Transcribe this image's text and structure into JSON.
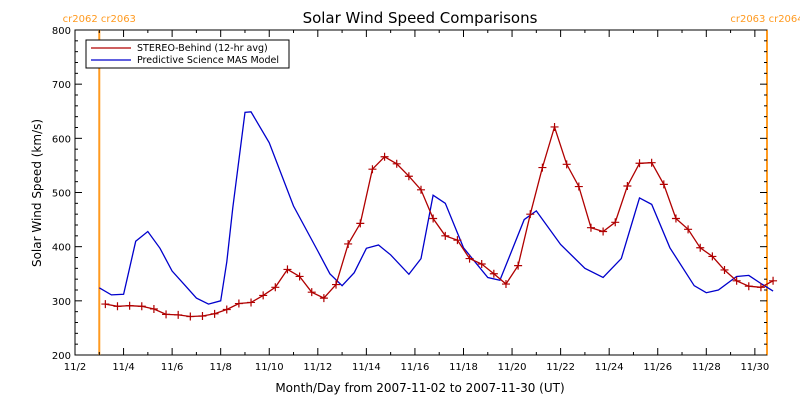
{
  "chart_data": {
    "type": "line",
    "title": "Solar Wind Speed Comparisons",
    "xlabel": "Month/Day from 2007-11-02 to 2007-11-30 (UT)",
    "ylabel": "Solar Wind Speed (km/s)",
    "ylim": [
      200,
      800
    ],
    "xlim": [
      "2007-11-02",
      "2007-11-30"
    ],
    "y_ticks": [
      "200",
      "300",
      "400",
      "500",
      "600",
      "700",
      "800"
    ],
    "x_ticks": [
      {
        "date": "2007-11-02",
        "label": "11/2"
      },
      {
        "date": "2007-11-04",
        "label": "11/4"
      },
      {
        "date": "2007-11-06",
        "label": "11/6"
      },
      {
        "date": "2007-11-08",
        "label": "11/8"
      },
      {
        "date": "2007-11-10",
        "label": "11/10"
      },
      {
        "date": "2007-11-12",
        "label": "11/12"
      },
      {
        "date": "2007-11-14",
        "label": "11/14"
      },
      {
        "date": "2007-11-16",
        "label": "11/16"
      },
      {
        "date": "2007-11-18",
        "label": "11/18"
      },
      {
        "date": "2007-11-20",
        "label": "11/20"
      },
      {
        "date": "2007-11-22",
        "label": "11/22"
      },
      {
        "date": "2007-11-24",
        "label": "11/24"
      },
      {
        "date": "2007-11-26",
        "label": "11/26"
      },
      {
        "date": "2007-11-28",
        "label": "11/28"
      },
      {
        "date": "2007-11-30",
        "label": "11/30"
      }
    ],
    "vertical_markers": [
      {
        "x": "2007-11-03 00:00",
        "label": "cr2062 cr2063",
        "color": "#ff9a20"
      },
      {
        "x": "2007-11-30 12:00",
        "label": "cr2063 cr2064",
        "color": "#ff9a20"
      }
    ],
    "legend_position": "top-left",
    "series": [
      {
        "name": "STEREO-Behind (12-hr avg)",
        "color": "#b00000",
        "marker": "plus",
        "points": [
          [
            "2007-11-03 06:00",
            294
          ],
          [
            "2007-11-03 18:00",
            290
          ],
          [
            "2007-11-04 06:00",
            291
          ],
          [
            "2007-11-04 18:00",
            290
          ],
          [
            "2007-11-05 06:00",
            285
          ],
          [
            "2007-11-05 18:00",
            275
          ],
          [
            "2007-11-06 06:00",
            274
          ],
          [
            "2007-11-06 18:00",
            271
          ],
          [
            "2007-11-07 06:00",
            272
          ],
          [
            "2007-11-07 18:00",
            276
          ],
          [
            "2007-11-08 06:00",
            284
          ],
          [
            "2007-11-08 18:00",
            295
          ],
          [
            "2007-11-09 06:00",
            297
          ],
          [
            "2007-11-09 18:00",
            310
          ],
          [
            "2007-11-10 06:00",
            325
          ],
          [
            "2007-11-10 18:00",
            358
          ],
          [
            "2007-11-11 06:00",
            345
          ],
          [
            "2007-11-11 18:00",
            316
          ],
          [
            "2007-11-12 06:00",
            305
          ],
          [
            "2007-11-12 18:00",
            330
          ],
          [
            "2007-11-13 06:00",
            405
          ],
          [
            "2007-11-13 18:00",
            443
          ],
          [
            "2007-11-14 06:00",
            543
          ],
          [
            "2007-11-14 18:00",
            566
          ],
          [
            "2007-11-15 06:00",
            553
          ],
          [
            "2007-11-15 18:00",
            530
          ],
          [
            "2007-11-16 06:00",
            505
          ],
          [
            "2007-11-16 18:00",
            452
          ],
          [
            "2007-11-17 06:00",
            420
          ],
          [
            "2007-11-17 18:00",
            412
          ],
          [
            "2007-11-18 06:00",
            378
          ],
          [
            "2007-11-18 18:00",
            368
          ],
          [
            "2007-11-19 06:00",
            350
          ],
          [
            "2007-11-19 18:00",
            331
          ],
          [
            "2007-11-20 06:00",
            365
          ],
          [
            "2007-11-20 18:00",
            460
          ],
          [
            "2007-11-21 06:00",
            546
          ],
          [
            "2007-11-21 18:00",
            621
          ],
          [
            "2007-11-22 06:00",
            552
          ],
          [
            "2007-11-22 18:00",
            511
          ],
          [
            "2007-11-23 06:00",
            435
          ],
          [
            "2007-11-23 18:00",
            428
          ],
          [
            "2007-11-24 06:00",
            445
          ],
          [
            "2007-11-24 18:00",
            512
          ],
          [
            "2007-11-25 06:00",
            554
          ],
          [
            "2007-11-25 18:00",
            555
          ],
          [
            "2007-11-26 06:00",
            515
          ],
          [
            "2007-11-26 18:00",
            452
          ],
          [
            "2007-11-27 06:00",
            432
          ],
          [
            "2007-11-27 18:00",
            398
          ],
          [
            "2007-11-28 06:00",
            382
          ],
          [
            "2007-11-28 18:00",
            357
          ],
          [
            "2007-11-29 06:00",
            337
          ],
          [
            "2007-11-29 18:00",
            327
          ],
          [
            "2007-11-30 06:00",
            325
          ],
          [
            "2007-11-30 18:00",
            337
          ]
        ]
      },
      {
        "name": "Predictive Science MAS Model",
        "color": "#0000cc",
        "marker": "none",
        "points": [
          [
            "2007-11-03 00:00",
            324
          ],
          [
            "2007-11-03 12:00",
            311
          ],
          [
            "2007-11-04 00:00",
            312
          ],
          [
            "2007-11-04 12:00",
            410
          ],
          [
            "2007-11-05 00:00",
            428
          ],
          [
            "2007-11-05 12:00",
            397
          ],
          [
            "2007-11-06 00:00",
            355
          ],
          [
            "2007-11-06 12:00",
            330
          ],
          [
            "2007-11-07 00:00",
            305
          ],
          [
            "2007-11-07 12:00",
            294
          ],
          [
            "2007-11-08 00:00",
            300
          ],
          [
            "2007-11-08 06:00",
            372
          ],
          [
            "2007-11-08 12:00",
            472
          ],
          [
            "2007-11-09 00:00",
            648
          ],
          [
            "2007-11-09 06:00",
            649
          ],
          [
            "2007-11-10 00:00",
            592
          ],
          [
            "2007-11-11 00:00",
            475
          ],
          [
            "2007-11-12 00:00",
            392
          ],
          [
            "2007-11-12 12:00",
            350
          ],
          [
            "2007-11-13 00:00",
            328
          ],
          [
            "2007-11-13 12:00",
            352
          ],
          [
            "2007-11-14 00:00",
            397
          ],
          [
            "2007-11-14 12:00",
            403
          ],
          [
            "2007-11-15 00:00",
            385
          ],
          [
            "2007-11-15 18:00",
            349
          ],
          [
            "2007-11-16 06:00",
            378
          ],
          [
            "2007-11-16 18:00",
            495
          ],
          [
            "2007-11-17 06:00",
            480
          ],
          [
            "2007-11-18 00:00",
            398
          ],
          [
            "2007-11-19 00:00",
            343
          ],
          [
            "2007-11-19 12:00",
            338
          ],
          [
            "2007-11-20 00:00",
            394
          ],
          [
            "2007-11-20 12:00",
            450
          ],
          [
            "2007-11-21 00:00",
            466
          ],
          [
            "2007-11-22 00:00",
            404
          ],
          [
            "2007-11-23 00:00",
            360
          ],
          [
            "2007-11-23 18:00",
            343
          ],
          [
            "2007-11-24 12:00",
            378
          ],
          [
            "2007-11-25 06:00",
            490
          ],
          [
            "2007-11-25 18:00",
            478
          ],
          [
            "2007-11-26 12:00",
            398
          ],
          [
            "2007-11-27 12:00",
            328
          ],
          [
            "2007-11-28 00:00",
            315
          ],
          [
            "2007-11-28 12:00",
            320
          ],
          [
            "2007-11-29 06:00",
            345
          ],
          [
            "2007-11-29 18:00",
            347
          ],
          [
            "2007-11-30 06:00",
            332
          ],
          [
            "2007-11-30 18:00",
            318
          ]
        ]
      }
    ]
  }
}
